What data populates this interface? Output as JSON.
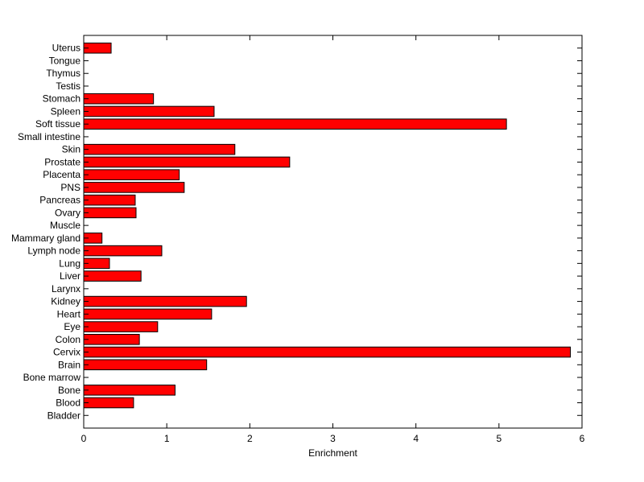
{
  "chart_data": {
    "type": "bar",
    "orientation": "horizontal",
    "title": "",
    "xlabel": "Enrichment",
    "ylabel": "",
    "xlim": [
      0,
      6
    ],
    "x_ticks": [
      "0",
      "1",
      "2",
      "3",
      "4",
      "5",
      "6"
    ],
    "grid": false,
    "bar_color": "#ff0000",
    "edge_color": "#000000",
    "categories": [
      "Bladder",
      "Blood",
      "Bone",
      "Bone marrow",
      "Brain",
      "Cervix",
      "Colon",
      "Eye",
      "Heart",
      "Kidney",
      "Larynx",
      "Liver",
      "Lung",
      "Lymph node",
      "Mammary gland",
      "Muscle",
      "Ovary",
      "Pancreas",
      "PNS",
      "Placenta",
      "Prostate",
      "Skin",
      "Small intestine",
      "Soft tissue",
      "Spleen",
      "Stomach",
      "Testis",
      "Thymus",
      "Tongue",
      "Uterus"
    ],
    "values": [
      0,
      0.6,
      1.1,
      0,
      1.48,
      5.86,
      0.67,
      0.89,
      1.54,
      1.96,
      0,
      0.69,
      0.31,
      0.94,
      0.22,
      0,
      0.63,
      0.62,
      1.21,
      1.15,
      2.48,
      1.82,
      0,
      5.09,
      1.57,
      0.84,
      0,
      0,
      0,
      0.33
    ]
  }
}
